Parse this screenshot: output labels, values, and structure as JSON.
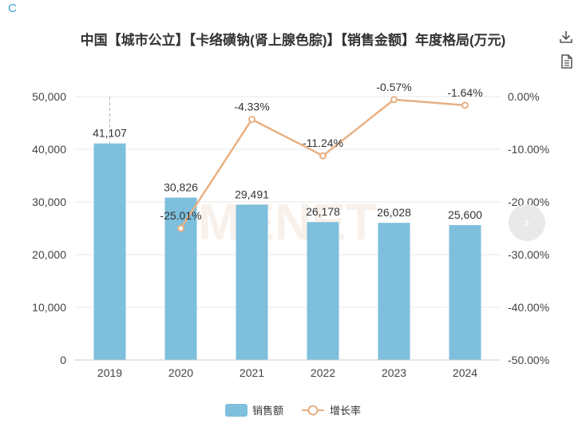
{
  "corner_mark": "C",
  "toolbar": {
    "download_icon": "download-icon",
    "data_view_icon": "document-icon"
  },
  "watermark": "MENET",
  "colors": {
    "bar": "#7dbfdc",
    "line": "#e8b083",
    "grid": "#e8e8e8",
    "text": "#333333"
  },
  "legend": {
    "bar_label": "销售额",
    "line_label": "增长率"
  },
  "chart_data": {
    "type": "bar+line",
    "title": "中国【城市公立】【卡络磺钠(肾上腺色腙)】【销售金额】年度格局(万元)",
    "categories": [
      "2019",
      "2020",
      "2021",
      "2022",
      "2023",
      "2024"
    ],
    "series": [
      {
        "name": "销售额",
        "type": "bar",
        "axis": "left",
        "values": [
          41107,
          30826,
          29491,
          26178,
          26028,
          25600
        ],
        "labels": [
          "41,107",
          "30,826",
          "29,491",
          "26,178",
          "26,028",
          "25,600"
        ]
      },
      {
        "name": "增长率",
        "type": "line",
        "axis": "right",
        "values": [
          null,
          -25.01,
          -4.33,
          -11.24,
          -0.57,
          -1.64
        ],
        "labels": [
          "",
          "-25.01%",
          "-4.33%",
          "-11.24%",
          "-0.57%",
          "-1.64%"
        ]
      }
    ],
    "y_left": {
      "min": 0,
      "max": 50000,
      "ticks": [
        "0",
        "10,000",
        "20,000",
        "30,000",
        "40,000",
        "50,000"
      ]
    },
    "y_right": {
      "min": -50,
      "max": 0,
      "ticks": [
        "-50.00%",
        "-40.00%",
        "-30.00%",
        "-20.00%",
        "-10.00%",
        "0.00%"
      ]
    },
    "grid": true,
    "legend_position": "bottom-center"
  }
}
